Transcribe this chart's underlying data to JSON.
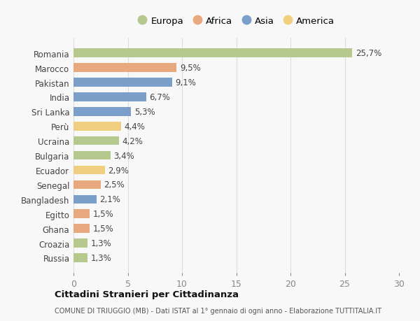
{
  "countries": [
    "Romania",
    "Marocco",
    "Pakistan",
    "India",
    "Sri Lanka",
    "Perù",
    "Ucraina",
    "Bulgaria",
    "Ecuador",
    "Senegal",
    "Bangladesh",
    "Egitto",
    "Ghana",
    "Croazia",
    "Russia"
  ],
  "values": [
    25.7,
    9.5,
    9.1,
    6.7,
    5.3,
    4.4,
    4.2,
    3.4,
    2.9,
    2.5,
    2.1,
    1.5,
    1.5,
    1.3,
    1.3
  ],
  "labels": [
    "25,7%",
    "9,5%",
    "9,1%",
    "6,7%",
    "5,3%",
    "4,4%",
    "4,2%",
    "3,4%",
    "2,9%",
    "2,5%",
    "2,1%",
    "1,5%",
    "1,5%",
    "1,3%",
    "1,3%"
  ],
  "continents": [
    "Europa",
    "Africa",
    "Asia",
    "Asia",
    "Asia",
    "America",
    "Europa",
    "Europa",
    "America",
    "Africa",
    "Asia",
    "Africa",
    "Africa",
    "Europa",
    "Europa"
  ],
  "continent_colors": {
    "Europa": "#b5c98e",
    "Africa": "#e8a97e",
    "Asia": "#7b9fc8",
    "America": "#f0d080"
  },
  "legend_order": [
    "Europa",
    "Africa",
    "Asia",
    "America"
  ],
  "title": "Cittadini Stranieri per Cittadinanza",
  "subtitle": "COMUNE DI TRIUGGIO (MB) - Dati ISTAT al 1° gennaio di ogni anno - Elaborazione TUTTITALIA.IT",
  "xlim": [
    0,
    30
  ],
  "xticks": [
    0,
    5,
    10,
    15,
    20,
    25,
    30
  ],
  "background_color": "#f8f8f8",
  "bar_height": 0.6,
  "grid_color": "#dddddd",
  "label_fontsize": 8.5,
  "ytick_fontsize": 8.5,
  "xtick_fontsize": 9
}
